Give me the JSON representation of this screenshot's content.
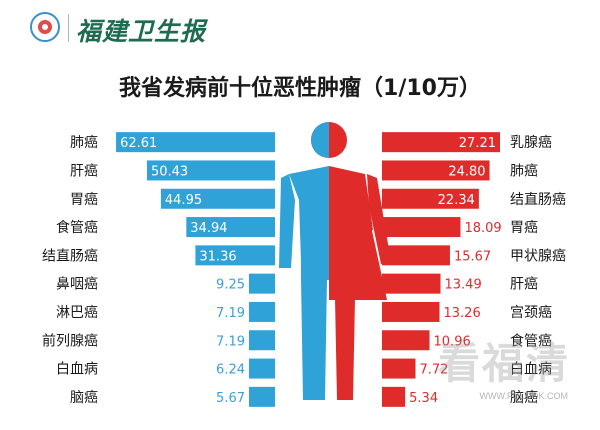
{
  "header": {
    "masthead": "福建卫生报"
  },
  "chart_data": {
    "type": "bar",
    "title": "我省发病前十位恶性肿瘤（1/10万）",
    "xmax": 65,
    "colors": {
      "male": "#2fa3d8",
      "female": "#e02b2b"
    },
    "male": {
      "categories": [
        "肺癌",
        "肝癌",
        "胃癌",
        "食管癌",
        "结直肠癌",
        "鼻咽癌",
        "淋巴癌",
        "前列腺癌",
        "白血病",
        "脑癌"
      ],
      "values": [
        62.61,
        50.43,
        44.95,
        34.94,
        31.36,
        9.25,
        7.19,
        7.19,
        6.24,
        5.67
      ]
    },
    "female": {
      "categories": [
        "乳腺癌",
        "肺癌",
        "结直肠癌",
        "胃癌",
        "甲状腺癌",
        "肝癌",
        "宫颈癌",
        "食管癌",
        "白血病",
        "脑癌"
      ],
      "values": [
        27.21,
        24.8,
        22.34,
        18.09,
        15.67,
        13.49,
        13.26,
        10.96,
        7.72,
        5.34
      ]
    }
  },
  "watermark": {
    "text": "看福清",
    "url": "WWW.FQLOOK.COM"
  }
}
